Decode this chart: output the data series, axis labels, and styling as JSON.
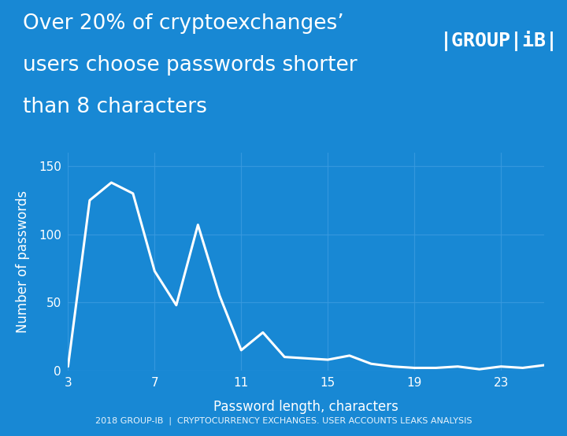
{
  "title_line1": "Over 20% of cryptoexchanges’",
  "title_line2": "users choose passwords shorter",
  "title_line3": "than 8 characters",
  "xlabel": "Password length, characters",
  "ylabel": "Number of passwords",
  "footer": "2018 GROUP-IB  |  CRYPTOCURRENCY EXCHANGES. USER ACCOUNTS LEAKS ANALYSIS",
  "background_color": "#1888d4",
  "line_color": "#ffffff",
  "grid_color": "#3a9be0",
  "text_color": "#ffffff",
  "x_data": [
    3,
    4,
    5,
    6,
    7,
    8,
    9,
    10,
    11,
    12,
    13,
    14,
    15,
    16,
    17,
    18,
    19,
    20,
    21,
    22,
    23,
    24,
    25
  ],
  "y_data": [
    3,
    125,
    138,
    130,
    73,
    48,
    107,
    55,
    15,
    28,
    10,
    9,
    8,
    11,
    5,
    3,
    2,
    2,
    3,
    1,
    3,
    2,
    4
  ],
  "yticks": [
    0,
    50,
    100,
    150
  ],
  "xticks": [
    3,
    7,
    11,
    15,
    19,
    23
  ],
  "ylim": [
    0,
    160
  ],
  "xlim": [
    3,
    25
  ],
  "title_fontsize": 19,
  "axis_label_fontsize": 12,
  "tick_fontsize": 11,
  "footer_fontsize": 8,
  "line_width": 2.2,
  "logo_text": "|GROUP|iB|",
  "logo_fontsize": 18
}
